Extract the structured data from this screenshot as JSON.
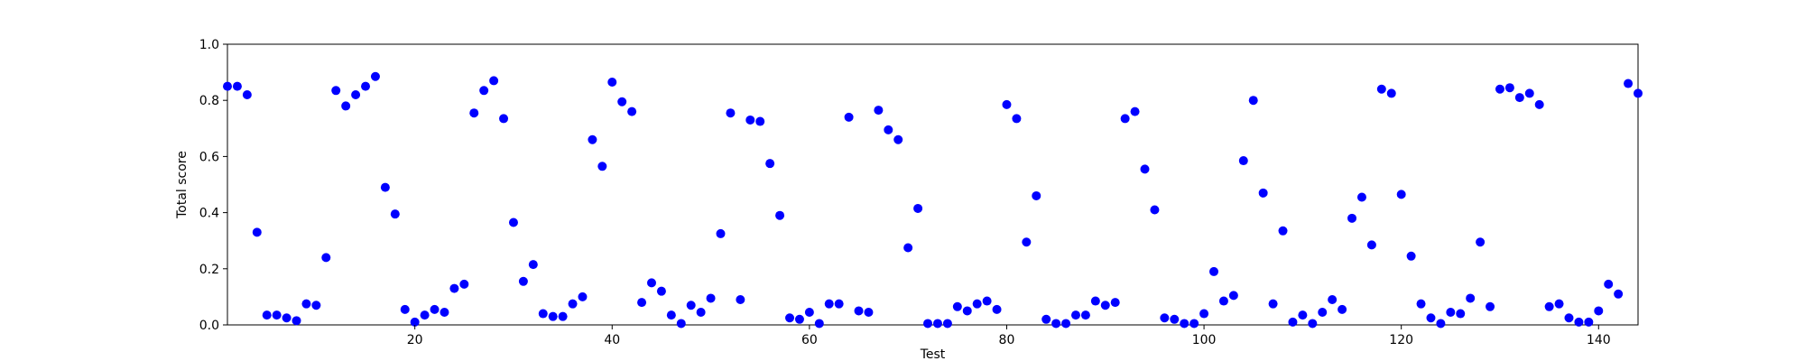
{
  "chart_data": {
    "type": "scatter",
    "title": "",
    "xlabel": "Test",
    "ylabel": "Total score",
    "xlim": [
      1,
      144
    ],
    "ylim": [
      0,
      1.0
    ],
    "x_ticks": [
      20,
      40,
      60,
      80,
      100,
      120,
      140
    ],
    "x_tick_labels": [
      "20",
      "40",
      "60",
      "80",
      "100",
      "120",
      "140"
    ],
    "y_ticks": [
      0,
      0.2,
      0.4,
      0.6,
      0.8,
      1.0
    ],
    "y_tick_labels": [
      "0.0",
      "0.2",
      "0.4",
      "0.6",
      "0.8",
      "1.0"
    ],
    "grid": false,
    "marker_color": "#0000ff",
    "series": [
      {
        "x": [
          1,
          2,
          3,
          4,
          5,
          6,
          7,
          8,
          9,
          10,
          11,
          12,
          13,
          14,
          15,
          16,
          17,
          18,
          19,
          20,
          21,
          22,
          23,
          24,
          25,
          26,
          27,
          28,
          29,
          30,
          31,
          32,
          33,
          34,
          35,
          36,
          37,
          38,
          39,
          40,
          41,
          42,
          43,
          44,
          45,
          46,
          47,
          48,
          49,
          50,
          51,
          52,
          53,
          54,
          55,
          56,
          57,
          58,
          59,
          60,
          61,
          62,
          63,
          64,
          65,
          66,
          67,
          68,
          69,
          70,
          71,
          72,
          73,
          74,
          75,
          76,
          77,
          78,
          79,
          80,
          81,
          82,
          83,
          84,
          85,
          86,
          87,
          88,
          89,
          90,
          91,
          92,
          93,
          94,
          95,
          96,
          97,
          98,
          99,
          100,
          101,
          102,
          103,
          104,
          105,
          106,
          107,
          108,
          109,
          110,
          111,
          112,
          113,
          114,
          115,
          116,
          117,
          118,
          119,
          120,
          121,
          122,
          123,
          124,
          125,
          126,
          127,
          128,
          129,
          130,
          131,
          132,
          133,
          134,
          135,
          136,
          137,
          138,
          139,
          140,
          141,
          142,
          143,
          144
        ],
        "y": [
          0.85,
          0.85,
          0.82,
          0.33,
          0.035,
          0.035,
          0.025,
          0.015,
          0.075,
          0.07,
          0.24,
          0.835,
          0.78,
          0.82,
          0.85,
          0.885,
          0.49,
          0.395,
          0.055,
          0.01,
          0.035,
          0.055,
          0.045,
          0.13,
          0.145,
          0.755,
          0.835,
          0.87,
          0.735,
          0.365,
          0.155,
          0.215,
          0.04,
          0.03,
          0.03,
          0.075,
          0.1,
          0.66,
          0.565,
          0.865,
          0.795,
          0.76,
          0.08,
          0.15,
          0.12,
          0.035,
          0.005,
          0.07,
          0.045,
          0.095,
          0.325,
          0.755,
          0.09,
          0.73,
          0.725,
          0.575,
          0.39,
          0.025,
          0.02,
          0.045,
          0.005,
          0.075,
          0.075,
          0.74,
          0.05,
          0.045,
          0.765,
          0.695,
          0.66,
          0.275,
          0.415,
          0.005,
          0.005,
          0.005,
          0.065,
          0.05,
          0.075,
          0.085,
          0.055,
          0.785,
          0.735,
          0.295,
          0.46,
          0.02,
          0.005,
          0.005,
          0.035,
          0.035,
          0.085,
          0.07,
          0.08,
          0.735,
          0.76,
          0.555,
          0.41,
          0.025,
          0.02,
          0.005,
          0.005,
          0.04,
          0.19,
          0.085,
          0.105,
          0.585,
          0.8,
          0.47,
          0.075,
          0.335,
          0.01,
          0.035,
          0.005,
          0.045,
          0.09,
          0.055,
          0.38,
          0.455,
          0.285,
          0.84,
          0.825,
          0.465,
          0.245,
          0.075,
          0.025,
          0.005,
          0.045,
          0.04,
          0.095,
          0.295,
          0.065,
          0.84,
          0.845,
          0.81,
          0.825,
          0.785,
          0.065,
          0.075,
          0.025,
          0.01,
          0.01,
          0.05,
          0.145,
          0.11,
          0.86,
          0.825
        ]
      }
    ]
  }
}
